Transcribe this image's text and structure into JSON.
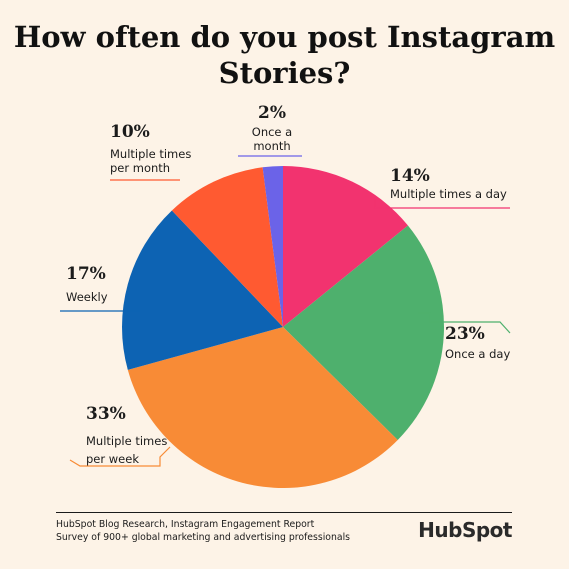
{
  "chart_data": {
    "type": "pie",
    "title_lines": [
      "How often do you post Instagram",
      "Stories?"
    ],
    "slices": [
      {
        "label_lines": [
          "Multiple times a day"
        ],
        "percent_label": "14%",
        "value": 14,
        "color": "#f2336f"
      },
      {
        "label_lines": [
          "Once a day"
        ],
        "percent_label": "23%",
        "value": 23,
        "color": "#4eb06d"
      },
      {
        "label_lines": [
          "Multiple times",
          "per week"
        ],
        "percent_label": "33%",
        "value": 33,
        "color": "#f88b36"
      },
      {
        "label_lines": [
          "Weekly"
        ],
        "percent_label": "17%",
        "value": 17,
        "color": "#0d63b3"
      },
      {
        "label_lines": [
          "Multiple times",
          "per month"
        ],
        "percent_label": "10%",
        "value": 10,
        "color": "#ff5a31"
      },
      {
        "label_lines": [
          "Once a",
          "month"
        ],
        "percent_label": "2%",
        "value": 2,
        "color": "#6b63e8"
      }
    ],
    "legend": "none"
  },
  "footer": {
    "source_lines": [
      "HubSpot Blog Research, Instagram Engagement Report",
      "Survey of 900+ global marketing and advertising professionals"
    ],
    "logo_text": "HubSpot"
  }
}
